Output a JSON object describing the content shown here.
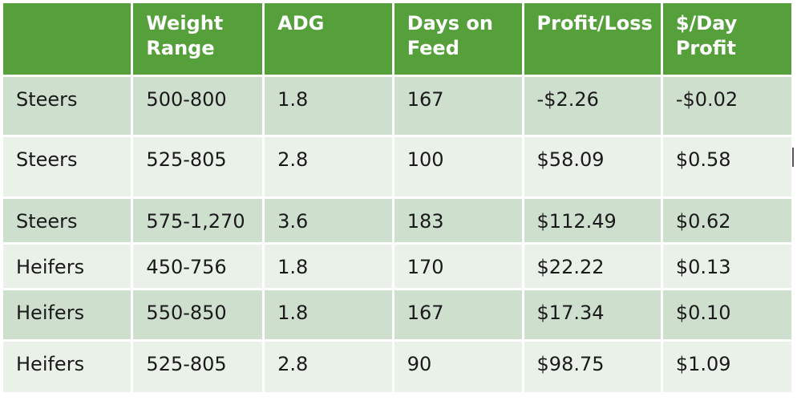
{
  "colors": {
    "header_bg": "#56a03c",
    "row_dark": "#cfdfce",
    "row_light": "#e9f1e8",
    "negative": "#ee1111"
  },
  "table": {
    "headers": [
      "",
      "Weight Range",
      "ADG",
      "Days on Feed",
      "Profit/Loss",
      "$/Day Profit"
    ],
    "rows": [
      {
        "cells": [
          "Steers",
          "500-800",
          "1.8",
          "167",
          "-$2.26",
          "-$0.02"
        ],
        "negative": [
          false,
          false,
          false,
          false,
          true,
          true
        ]
      },
      {
        "cells": [
          "Steers",
          "525-805",
          "2.8",
          "100",
          "$58.09",
          "$0.58"
        ],
        "negative": [
          false,
          false,
          false,
          false,
          false,
          false
        ]
      },
      {
        "cells": [
          "Steers",
          "575-1,270",
          "3.6",
          "183",
          "$112.49",
          "$0.62"
        ],
        "negative": [
          false,
          false,
          false,
          false,
          false,
          false
        ]
      },
      {
        "cells": [
          "Heifers",
          "450-756",
          "1.8",
          "170",
          "$22.22",
          "$0.13"
        ],
        "negative": [
          false,
          false,
          false,
          false,
          false,
          false
        ]
      },
      {
        "cells": [
          "Heifers",
          "550-850",
          "1.8",
          "167",
          "$17.34",
          "$0.10"
        ],
        "negative": [
          false,
          false,
          false,
          false,
          false,
          false
        ]
      },
      {
        "cells": [
          "Heifers",
          "525-805",
          "2.8",
          "90",
          "$98.75",
          "$1.09"
        ],
        "negative": [
          false,
          false,
          false,
          false,
          false,
          false
        ]
      }
    ]
  }
}
